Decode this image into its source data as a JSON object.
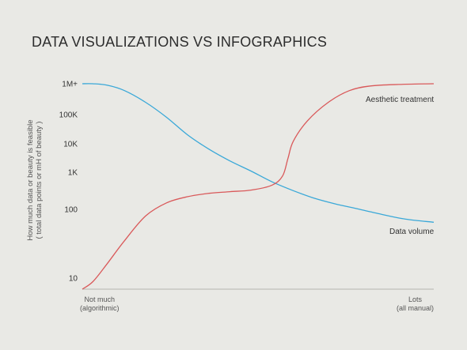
{
  "chart_data": {
    "type": "line",
    "title": "DATA VISUALIZATIONS VS INFOGRAPHICS",
    "ylabel_lines": [
      "How much data or beauty is feasible",
      "( total data points or mH of beauty )"
    ],
    "x_labels": {
      "left": [
        "Not much",
        "(algorithmic)"
      ],
      "right": [
        "Lots",
        "(all manual)"
      ]
    },
    "y_scale": "log",
    "y_ticks": [
      {
        "label": "10",
        "value": 10
      },
      {
        "label": "100",
        "value": 100
      },
      {
        "label": "1K",
        "value": 1000
      },
      {
        "label": "10K",
        "value": 10000
      },
      {
        "label": "100K",
        "value": 100000
      },
      {
        "label": "1M+",
        "value": 1000000
      }
    ],
    "xlim": [
      0,
      1
    ],
    "grid": false,
    "series": [
      {
        "name": "Data volume",
        "color": "#3aa8d8",
        "points": [
          [
            0,
            1000000
          ],
          [
            0.03,
            1000000
          ],
          [
            0.07,
            900000
          ],
          [
            0.12,
            600000
          ],
          [
            0.18,
            250000
          ],
          [
            0.24,
            80000
          ],
          [
            0.3,
            20000
          ],
          [
            0.36,
            6500
          ],
          [
            0.42,
            2500
          ],
          [
            0.48,
            1100
          ],
          [
            0.54,
            550
          ],
          [
            0.6,
            320
          ],
          [
            0.66,
            200
          ],
          [
            0.72,
            140
          ],
          [
            0.78,
            105
          ],
          [
            0.85,
            85
          ],
          [
            0.92,
            72
          ],
          [
            1,
            65
          ]
        ]
      },
      {
        "name": "Aesthetic treatment",
        "color": "#d9595a",
        "points": [
          [
            0,
            5
          ],
          [
            0.03,
            8
          ],
          [
            0.07,
            16
          ],
          [
            0.12,
            35
          ],
          [
            0.18,
            80
          ],
          [
            0.24,
            150
          ],
          [
            0.3,
            220
          ],
          [
            0.36,
            270
          ],
          [
            0.42,
            300
          ],
          [
            0.48,
            330
          ],
          [
            0.54,
            450
          ],
          [
            0.57,
            800
          ],
          [
            0.585,
            3000
          ],
          [
            0.6,
            12000
          ],
          [
            0.64,
            60000
          ],
          [
            0.7,
            250000
          ],
          [
            0.76,
            600000
          ],
          [
            0.82,
            850000
          ],
          [
            0.9,
            950000
          ],
          [
            1,
            1000000
          ]
        ]
      }
    ]
  }
}
